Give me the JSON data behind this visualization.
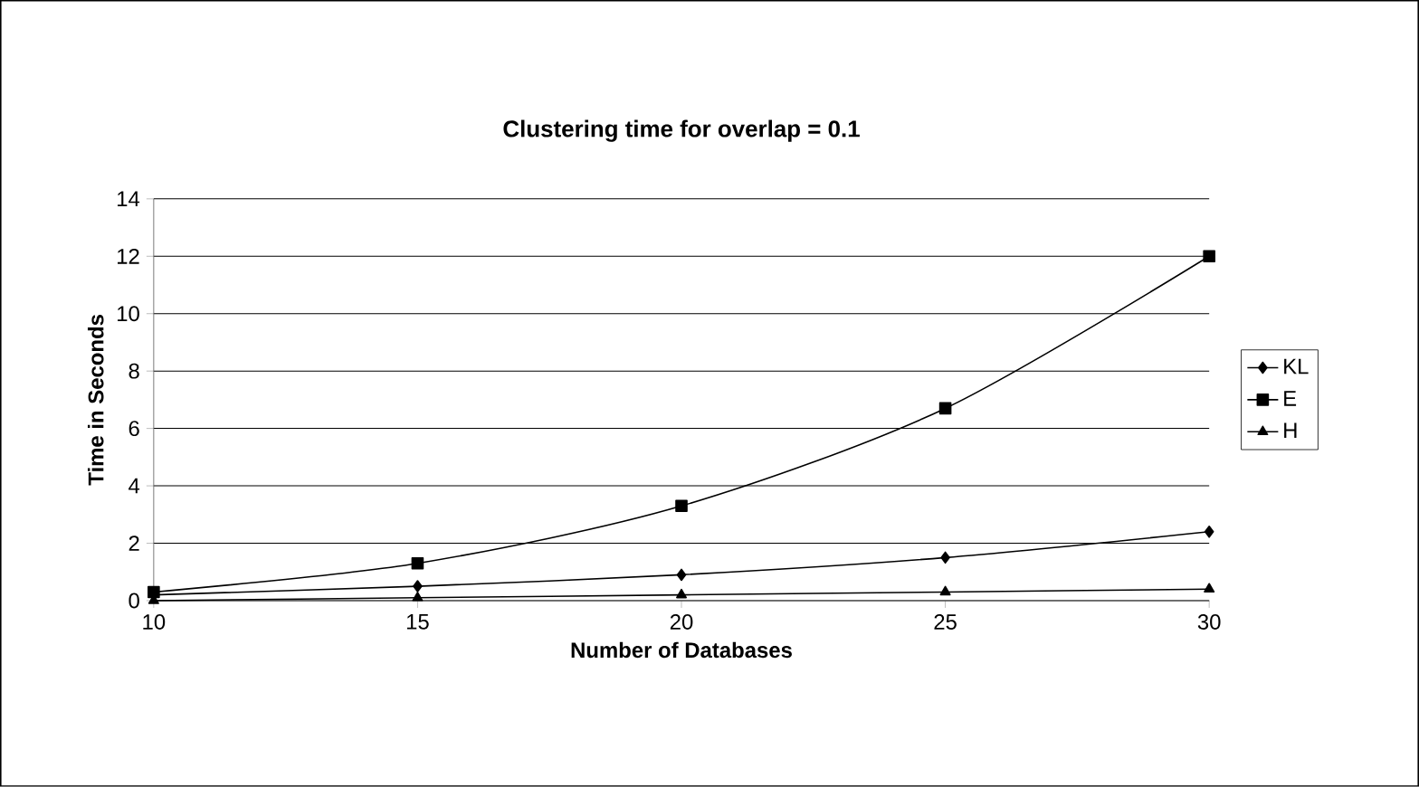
{
  "chart_data": {
    "type": "line",
    "title": "Clustering time for overlap = 0.1",
    "xlabel": "Number of Databases",
    "ylabel": "Time in Seconds",
    "x": [
      10,
      15,
      20,
      25,
      30
    ],
    "xlim": [
      10,
      30
    ],
    "xticks": [
      10,
      15,
      20,
      25,
      30
    ],
    "ylim": [
      0,
      14
    ],
    "yticks": [
      0,
      2,
      4,
      6,
      8,
      10,
      12,
      14
    ],
    "grid": "y",
    "legend": "right",
    "series": [
      {
        "name": "KL",
        "color": "#000000",
        "marker": "diamond",
        "values": [
          0.2,
          0.5,
          0.9,
          1.5,
          2.4
        ]
      },
      {
        "name": "E",
        "color": "#000000",
        "marker": "square",
        "values": [
          0.3,
          1.3,
          3.3,
          6.7,
          12
        ]
      },
      {
        "name": "H",
        "color": "#000000",
        "marker": "triangle",
        "values": [
          0.0,
          0.1,
          0.2,
          0.3,
          0.4
        ]
      }
    ]
  }
}
